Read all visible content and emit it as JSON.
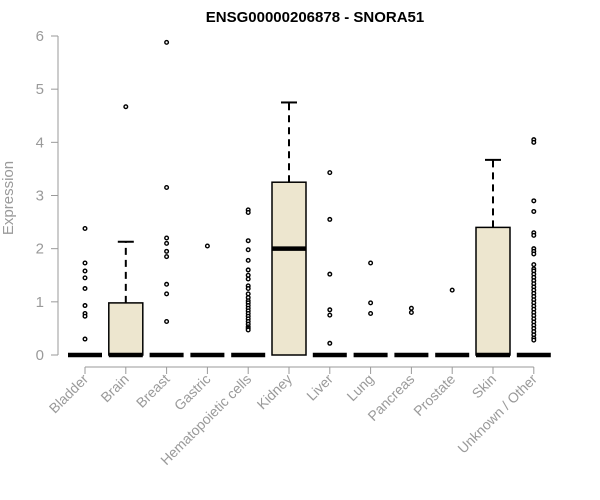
{
  "chart_data": {
    "type": "box",
    "title": "ENSG00000206878 - SNORA51",
    "ylabel": "Expression",
    "xlabel": "",
    "ylim": [
      0,
      6
    ],
    "yticks": [
      0,
      1,
      2,
      3,
      4,
      5,
      6
    ],
    "grid": false,
    "legend": "none",
    "box_fill": "#ede6cf",
    "categories": [
      "Bladder",
      "Brain",
      "Breast",
      "Gastric",
      "Hematopoietic cells",
      "Kidney",
      "Liver",
      "Lung",
      "Pancreas",
      "Prostate",
      "Skin",
      "Unknown / Other"
    ],
    "boxes": [
      {
        "q1": 0,
        "median": 0,
        "q3": 0,
        "whisker_low": 0,
        "whisker_high": 0,
        "outliers": [
          2.38,
          1.73,
          1.58,
          1.45,
          1.25,
          0.93,
          0.78,
          0.73,
          0.3
        ]
      },
      {
        "q1": 0,
        "median": 0,
        "q3": 0.98,
        "whisker_low": 0,
        "whisker_high": 2.13,
        "outliers": [
          4.67
        ]
      },
      {
        "q1": 0,
        "median": 0,
        "q3": 0,
        "whisker_low": 0,
        "whisker_high": 0,
        "outliers": [
          5.88,
          3.15,
          2.2,
          2.1,
          1.95,
          1.85,
          1.33,
          1.15,
          0.63
        ]
      },
      {
        "q1": 0,
        "median": 0,
        "q3": 0,
        "whisker_low": 0,
        "whisker_high": 0,
        "outliers": [
          2.05
        ]
      },
      {
        "q1": 0,
        "median": 0,
        "q3": 0,
        "whisker_low": 0,
        "whisker_high": 0,
        "outliers": [
          2.73,
          2.68,
          2.15,
          1.98,
          1.78,
          1.6,
          1.5,
          1.43,
          1.3,
          1.25,
          1.15,
          1.08,
          1.02,
          0.98,
          0.93,
          0.88,
          0.83,
          0.78,
          0.73,
          0.68,
          0.63,
          0.58,
          0.53,
          0.5,
          0.47
        ]
      },
      {
        "q1": 0,
        "median": 2.0,
        "q3": 3.25,
        "whisker_low": 0,
        "whisker_high": 4.75,
        "outliers": []
      },
      {
        "q1": 0,
        "median": 0,
        "q3": 0,
        "whisker_low": 0,
        "whisker_high": 0,
        "outliers": [
          3.43,
          2.55,
          1.52,
          0.85,
          0.75,
          0.22
        ]
      },
      {
        "q1": 0,
        "median": 0,
        "q3": 0,
        "whisker_low": 0,
        "whisker_high": 0,
        "outliers": [
          1.73,
          0.98,
          0.78
        ]
      },
      {
        "q1": 0,
        "median": 0,
        "q3": 0,
        "whisker_low": 0,
        "whisker_high": 0,
        "outliers": [
          0.88,
          0.8
        ]
      },
      {
        "q1": 0,
        "median": 0,
        "q3": 0,
        "whisker_low": 0,
        "whisker_high": 0,
        "outliers": [
          1.22
        ]
      },
      {
        "q1": 0,
        "median": 0,
        "q3": 2.4,
        "whisker_low": 0,
        "whisker_high": 3.67,
        "outliers": []
      },
      {
        "q1": 0,
        "median": 0,
        "q3": 0,
        "whisker_low": 0,
        "whisker_high": 0,
        "outliers": [
          4.05,
          4.0,
          2.9,
          2.7,
          2.3,
          2.25,
          2.0,
          1.95,
          1.9,
          1.7,
          1.62,
          1.58,
          1.52,
          1.46,
          1.4,
          1.34,
          1.28,
          1.22,
          1.16,
          1.1,
          1.04,
          0.98,
          0.92,
          0.86,
          0.8,
          0.74,
          0.68,
          0.62,
          0.56,
          0.5,
          0.44,
          0.38,
          0.32,
          0.28
        ]
      }
    ]
  }
}
